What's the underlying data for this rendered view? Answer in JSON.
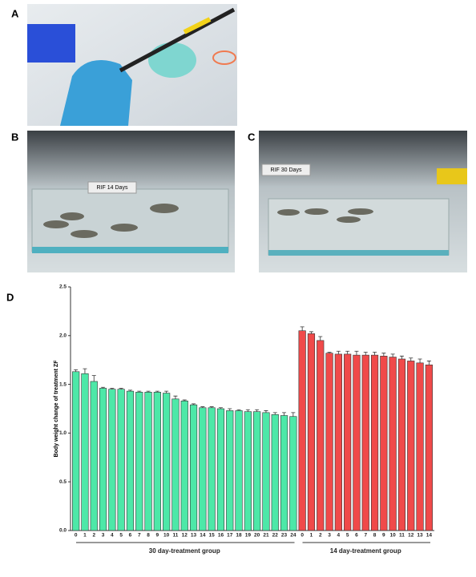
{
  "panels": [
    {
      "letter": "A"
    },
    {
      "letter": "B",
      "sign": "RIF 14 Days"
    },
    {
      "letter": "C",
      "sign": "RIF 30 Days"
    },
    {
      "letter": "D"
    }
  ],
  "chart_data": {
    "type": "bar",
    "ylabel": "Body weight change of treatment ZF",
    "ylim": [
      0,
      2.5
    ],
    "yticks": [
      {
        "value": 0,
        "label": "0.0"
      },
      {
        "value": 0.5,
        "label": "0.5"
      },
      {
        "value": 1,
        "label": "1.0"
      },
      {
        "value": 1.5,
        "label": "1.5"
      },
      {
        "value": 2,
        "label": "2.0"
      },
      {
        "value": 2.5,
        "label": "2.5"
      }
    ],
    "series": [
      {
        "name": "30 day-treatment group",
        "color": "#4de8a8",
        "categories": [
          "0",
          "1",
          "2",
          "3",
          "4",
          "5",
          "6",
          "7",
          "8",
          "9",
          "10",
          "11",
          "12",
          "13",
          "14",
          "15",
          "16",
          "17",
          "18",
          "19",
          "20",
          "21",
          "22",
          "23",
          "24"
        ],
        "values": [
          1.63,
          1.61,
          1.53,
          1.46,
          1.45,
          1.45,
          1.43,
          1.42,
          1.42,
          1.42,
          1.41,
          1.35,
          1.33,
          1.29,
          1.26,
          1.26,
          1.25,
          1.23,
          1.23,
          1.22,
          1.22,
          1.21,
          1.19,
          1.18,
          1.17
        ],
        "errors": [
          0.02,
          0.05,
          0.06,
          0.01,
          0.01,
          0.01,
          0.01,
          0.01,
          0.01,
          0.01,
          0.02,
          0.03,
          0.01,
          0.01,
          0.01,
          0.01,
          0.01,
          0.02,
          0.01,
          0.02,
          0.02,
          0.02,
          0.02,
          0.03,
          0.04
        ]
      },
      {
        "name": "14 day-treatment group",
        "color": "#f04a4a",
        "categories": [
          "0",
          "1",
          "2",
          "3",
          "4",
          "5",
          "6",
          "7",
          "8",
          "9",
          "10",
          "11",
          "12",
          "13",
          "14"
        ],
        "values": [
          2.05,
          2.02,
          1.95,
          1.82,
          1.81,
          1.81,
          1.8,
          1.8,
          1.8,
          1.79,
          1.78,
          1.76,
          1.74,
          1.72,
          1.7
        ],
        "errors": [
          0.04,
          0.02,
          0.04,
          0.01,
          0.03,
          0.03,
          0.04,
          0.03,
          0.03,
          0.03,
          0.03,
          0.03,
          0.03,
          0.04,
          0.04
        ]
      }
    ]
  }
}
